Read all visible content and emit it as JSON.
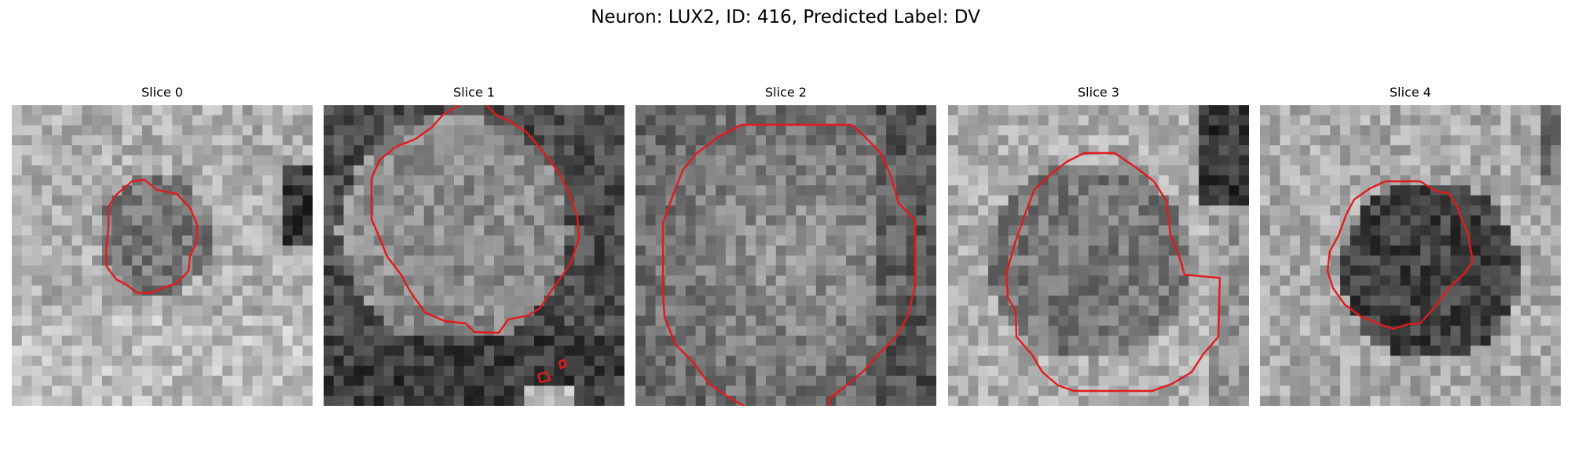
{
  "figure": {
    "title": "Neuron: LUX2, ID: 416, Predicted Label: DV",
    "contour_color": "#e31a1c",
    "colormap": "grayscale",
    "panels": [
      {
        "title": "Slice 0",
        "contour": "small rounded polygon, center-left",
        "background": "bright with dark patch at right edge"
      },
      {
        "title": "Slice 1",
        "contour": "large polygon extending above top edge, plus small diamond loops near bottom",
        "background": "dark band at bottom"
      },
      {
        "title": "Slice 2",
        "contour": "large polygon extending past bottom edge",
        "background": "mottled mid-gray"
      },
      {
        "title": "Slice 3",
        "contour": "medium-large polygon, center",
        "background": "bright left, dark upper-right corner"
      },
      {
        "title": "Slice 4",
        "contour": "medium polygon, center, dark interior",
        "background": "bright noisy"
      }
    ]
  }
}
